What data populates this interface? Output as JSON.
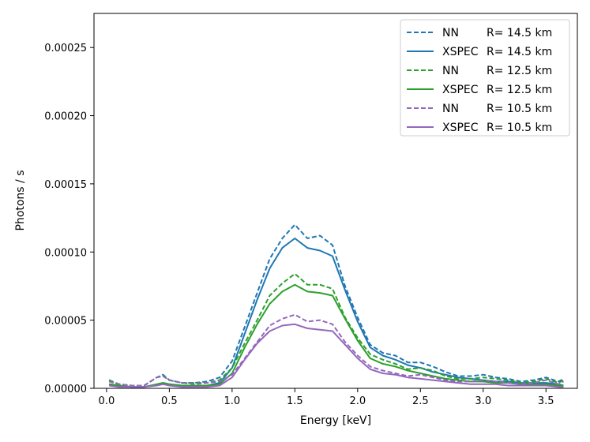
{
  "chart_data": {
    "type": "line",
    "title": "",
    "xlabel": "Energy [keV]",
    "ylabel": "Photons / s",
    "xlim": [
      -0.1,
      3.75
    ],
    "ylim": [
      0,
      0.000275
    ],
    "grid": false,
    "legend_position": "top-right",
    "x_ticks": [
      0.0,
      0.5,
      1.0,
      1.5,
      2.0,
      2.5,
      3.0,
      3.5
    ],
    "x_tick_labels": [
      "0.0",
      "0.5",
      "1.0",
      "1.5",
      "2.0",
      "2.5",
      "3.0",
      "3.5"
    ],
    "y_ticks": [
      0,
      5e-05,
      0.0001,
      0.00015,
      0.0002,
      0.00025
    ],
    "y_tick_labels": [
      "0.00000",
      "0.00005",
      "0.00010",
      "0.00015",
      "0.00020",
      "0.00025"
    ],
    "x": [
      0.02,
      0.1,
      0.2,
      0.3,
      0.4,
      0.45,
      0.5,
      0.6,
      0.7,
      0.8,
      0.9,
      1.0,
      1.1,
      1.2,
      1.3,
      1.4,
      1.5,
      1.6,
      1.7,
      1.8,
      1.9,
      2.0,
      2.1,
      2.2,
      2.3,
      2.4,
      2.5,
      2.6,
      2.7,
      2.8,
      2.9,
      3.0,
      3.1,
      3.2,
      3.3,
      3.4,
      3.5,
      3.6,
      3.64
    ],
    "series": [
      {
        "name": "NN",
        "label_r": "R= 14.5 km",
        "color": "#1f77b4",
        "dash": true,
        "values": [
          6e-06,
          3e-06,
          2e-06,
          2e-06,
          8e-06,
          1e-05,
          6e-06,
          4e-06,
          4e-06,
          5e-06,
          8e-06,
          2e-05,
          4.5e-05,
          7e-05,
          9.5e-05,
          0.00011,
          0.00012,
          0.00011,
          0.000112,
          0.000105,
          7.5e-05,
          5.2e-05,
          3.2e-05,
          2.6e-05,
          2.4e-05,
          1.9e-05,
          1.9e-05,
          1.6e-05,
          1.2e-05,
          9e-06,
          9e-06,
          1e-05,
          8e-06,
          7e-06,
          5e-06,
          6e-06,
          8e-06,
          5e-06,
          7e-06
        ]
      },
      {
        "name": "XSPEC",
        "label_r": "R= 14.5 km",
        "color": "#1f77b4",
        "dash": false,
        "values": [
          3e-06,
          2e-06,
          1e-06,
          1e-06,
          3e-06,
          4e-06,
          3e-06,
          2e-06,
          2e-06,
          2e-06,
          4e-06,
          1.5e-05,
          4e-05,
          6.5e-05,
          8.8e-05,
          0.000103,
          0.00011,
          0.000103,
          0.000101,
          9.7e-05,
          7.2e-05,
          4.9e-05,
          3e-05,
          2.4e-05,
          2.1e-05,
          1.7e-05,
          1.5e-05,
          1.2e-05,
          1e-05,
          8e-06,
          7e-06,
          6e-06,
          5e-06,
          5e-06,
          4e-06,
          4e-06,
          4e-06,
          3e-06,
          2e-06
        ]
      },
      {
        "name": "NN",
        "label_r": "R= 12.5 km",
        "color": "#2ca02c",
        "dash": true,
        "values": [
          6e-06,
          3e-06,
          2e-06,
          2e-06,
          8e-06,
          9e-06,
          6e-06,
          4e-06,
          4e-06,
          4e-06,
          6e-06,
          1.5e-05,
          3.3e-05,
          5e-05,
          6.8e-05,
          7.7e-05,
          8.4e-05,
          7.6e-05,
          7.6e-05,
          7.3e-05,
          5.2e-05,
          3.7e-05,
          2.5e-05,
          2.1e-05,
          1.8e-05,
          1.4e-05,
          1.5e-05,
          1.3e-05,
          9e-06,
          7e-06,
          7e-06,
          8e-06,
          7e-06,
          6e-06,
          4e-06,
          5e-06,
          7e-06,
          4e-06,
          6e-06
        ]
      },
      {
        "name": "XSPEC",
        "label_r": "R= 12.5 km",
        "color": "#2ca02c",
        "dash": false,
        "values": [
          3e-06,
          2e-06,
          1e-06,
          1e-06,
          3e-06,
          4e-06,
          3e-06,
          2e-06,
          2e-06,
          2e-06,
          3e-06,
          1.1e-05,
          3e-05,
          4.7e-05,
          6.2e-05,
          7.1e-05,
          7.6e-05,
          7.1e-05,
          7e-05,
          6.8e-05,
          5.1e-05,
          3.5e-05,
          2.2e-05,
          1.8e-05,
          1.6e-05,
          1.3e-05,
          1.1e-05,
          9e-06,
          7e-06,
          6e-06,
          5e-06,
          5e-06,
          4e-06,
          4e-06,
          3e-06,
          3e-06,
          3e-06,
          2e-06,
          2e-06
        ]
      },
      {
        "name": "NN",
        "label_r": "R= 10.5 km",
        "color": "#9467bd",
        "dash": true,
        "values": [
          5e-06,
          3e-06,
          2e-06,
          2e-06,
          8e-06,
          9e-06,
          6e-06,
          4e-06,
          3e-06,
          4e-06,
          5e-06,
          1e-05,
          2.2e-05,
          3.4e-05,
          4.6e-05,
          5.1e-05,
          5.4e-05,
          4.9e-05,
          5e-05,
          4.7e-05,
          3.4e-05,
          2.4e-05,
          1.6e-05,
          1.3e-05,
          1.1e-05,
          9e-06,
          1e-05,
          8e-06,
          6e-06,
          5e-06,
          5e-06,
          6e-06,
          5e-06,
          4e-06,
          3e-06,
          4e-06,
          6e-06,
          3e-06,
          5e-06
        ]
      },
      {
        "name": "XSPEC",
        "label_r": "R= 10.5 km",
        "color": "#9467bd",
        "dash": false,
        "values": [
          2e-06,
          1e-06,
          1e-06,
          1e-06,
          2e-06,
          3e-06,
          2e-06,
          1e-06,
          1e-06,
          1e-06,
          2e-06,
          8e-06,
          2.1e-05,
          3.3e-05,
          4.2e-05,
          4.6e-05,
          4.7e-05,
          4.4e-05,
          4.3e-05,
          4.2e-05,
          3.2e-05,
          2.2e-05,
          1.4e-05,
          1.1e-05,
          1e-05,
          8e-06,
          7e-06,
          6e-06,
          5e-06,
          4e-06,
          3e-06,
          3e-06,
          3e-06,
          2e-06,
          2e-06,
          2e-06,
          2e-06,
          1e-06,
          1e-06
        ]
      }
    ]
  }
}
